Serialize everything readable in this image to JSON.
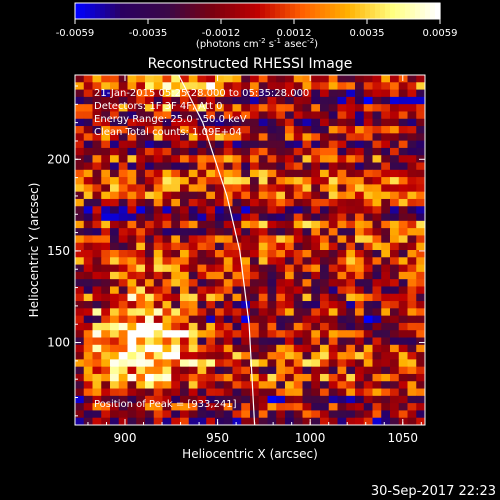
{
  "chart_data": {
    "type": "heatmap",
    "title": "Reconstructed RHESSI Image",
    "xlabel": "Heliocentric X (arcsec)",
    "ylabel": "Heliocentric Y (arcsec)",
    "xlim": [
      873,
      1062
    ],
    "ylim": [
      55,
      246
    ],
    "x_ticks": [
      900,
      950,
      1000,
      1050
    ],
    "y_ticks": [
      100,
      150,
      200
    ],
    "colorbar": {
      "ticks": [
        "-0.0059",
        "-0.0035",
        "-0.0012",
        "0.0012",
        "0.0035",
        "0.0059"
      ],
      "range": [
        -0.0059,
        0.0059
      ],
      "label_main": "(photons cm",
      "label_exp1": "-2",
      "label_mid1": " s",
      "label_exp2": "-1",
      "label_mid2": " asec",
      "label_exp3": "-2",
      "label_end": ")",
      "colormap": [
        "#0000ff",
        "#2a0060",
        "#3a0848",
        "#7a0010",
        "#c00000",
        "#ff6000",
        "#ffb000",
        "#ffff80",
        "#ffffff"
      ]
    },
    "annotations": [
      "21-Jan-2015 05:25:28.000 to 05:35:28.000",
      "Detectors: 1F 3F 4F, Att 0",
      "Energy Range: 25.0 - 50.0 keV",
      "Clean     Total counts: 1.09E+04"
    ],
    "peak_label": "Position of Peak = [933,241]",
    "peak": [
      933,
      241
    ],
    "limb_curve": [
      [
        929,
        246
      ],
      [
        942,
        220
      ],
      [
        955,
        180
      ],
      [
        962,
        150
      ],
      [
        967,
        110
      ],
      [
        970,
        55
      ]
    ],
    "grid": false
  },
  "footer": {
    "timestamp": "30-Sep-2017 22:23"
  }
}
